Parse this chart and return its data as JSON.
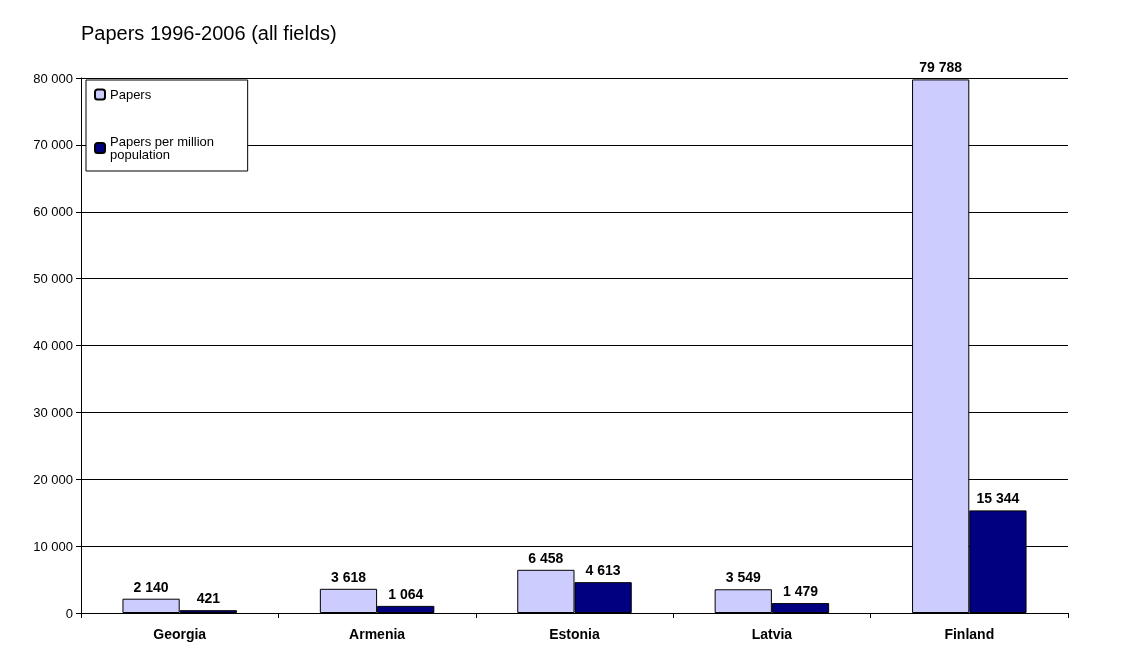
{
  "chart_data": {
    "type": "bar",
    "title": "Papers 1996-2006 (all fields)",
    "categories": [
      "Georgia",
      "Armenia",
      "Estonia",
      "Latvia",
      "Finland"
    ],
    "series": [
      {
        "name": "Papers",
        "color": "#ccccff",
        "values": [
          2140,
          3618,
          6458,
          3549,
          79788
        ],
        "value_labels": [
          "2 140",
          "3 618",
          "6 458",
          "3 549",
          "79 788"
        ]
      },
      {
        "name": "Papers per million population",
        "color": "#000080",
        "values": [
          421,
          1064,
          4613,
          1479,
          15344
        ],
        "value_labels": [
          "421",
          "1 064",
          "4 613",
          "1 479",
          "15 344"
        ]
      }
    ],
    "ylim": [
      0,
      80000
    ],
    "yticks": [
      {
        "value": 0,
        "label": "0"
      },
      {
        "value": 10000,
        "label": "10 000"
      },
      {
        "value": 20000,
        "label": "20 000"
      },
      {
        "value": 30000,
        "label": "30 000"
      },
      {
        "value": 40000,
        "label": "40 000"
      },
      {
        "value": 50000,
        "label": "50 000"
      },
      {
        "value": 60000,
        "label": "60 000"
      },
      {
        "value": 70000,
        "label": "70 000"
      },
      {
        "value": 80000,
        "label": "80 000"
      }
    ],
    "grid": "y",
    "legend": "top left"
  }
}
